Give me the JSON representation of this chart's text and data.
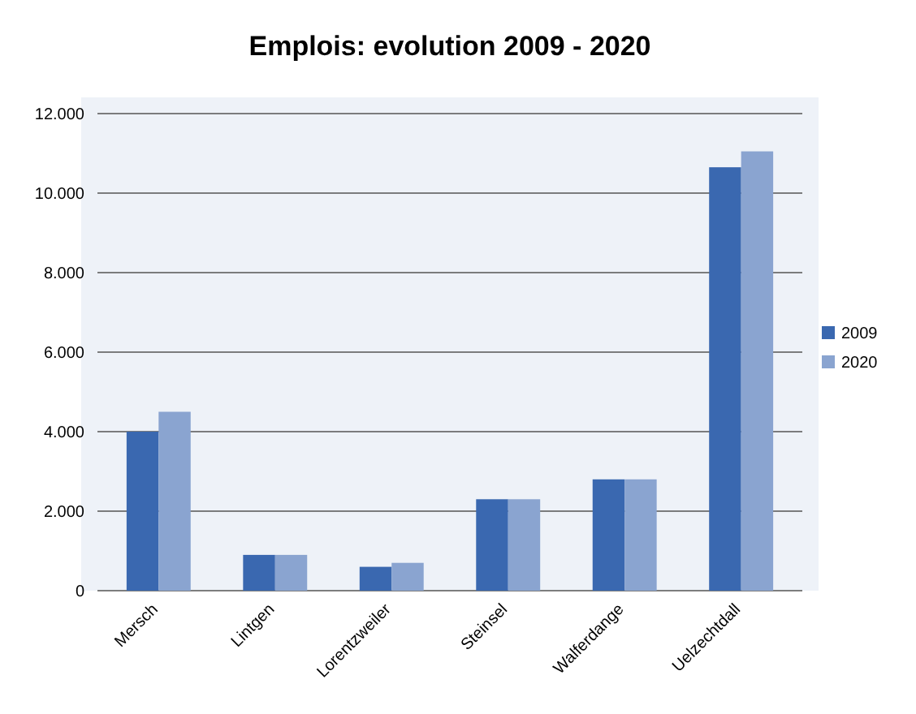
{
  "chart_data": {
    "type": "bar",
    "title": "Emplois: evolution 2009 - 2020",
    "categories": [
      "Mersch",
      "Lintgen",
      "Lorentzweiler",
      "Steinsel",
      "Walferdange",
      "Uelzechtdall"
    ],
    "series": [
      {
        "name": "2009",
        "color": "#3a68b0",
        "values": [
          4000,
          900,
          600,
          2300,
          2800,
          10650
        ]
      },
      {
        "name": "2020",
        "color": "#8aa4d0",
        "values": [
          4500,
          900,
          700,
          2300,
          2800,
          11050
        ]
      }
    ],
    "ylim": [
      0,
      12000
    ],
    "yticks": [
      {
        "value": 0,
        "label": "0"
      },
      {
        "value": 2000,
        "label": "2.000"
      },
      {
        "value": 4000,
        "label": "4.000"
      },
      {
        "value": 6000,
        "label": "6.000"
      },
      {
        "value": 8000,
        "label": "8.000"
      },
      {
        "value": 10000,
        "label": "10.000"
      },
      {
        "value": 12000,
        "label": "12.000"
      }
    ],
    "grid": "y",
    "legend": "right"
  }
}
